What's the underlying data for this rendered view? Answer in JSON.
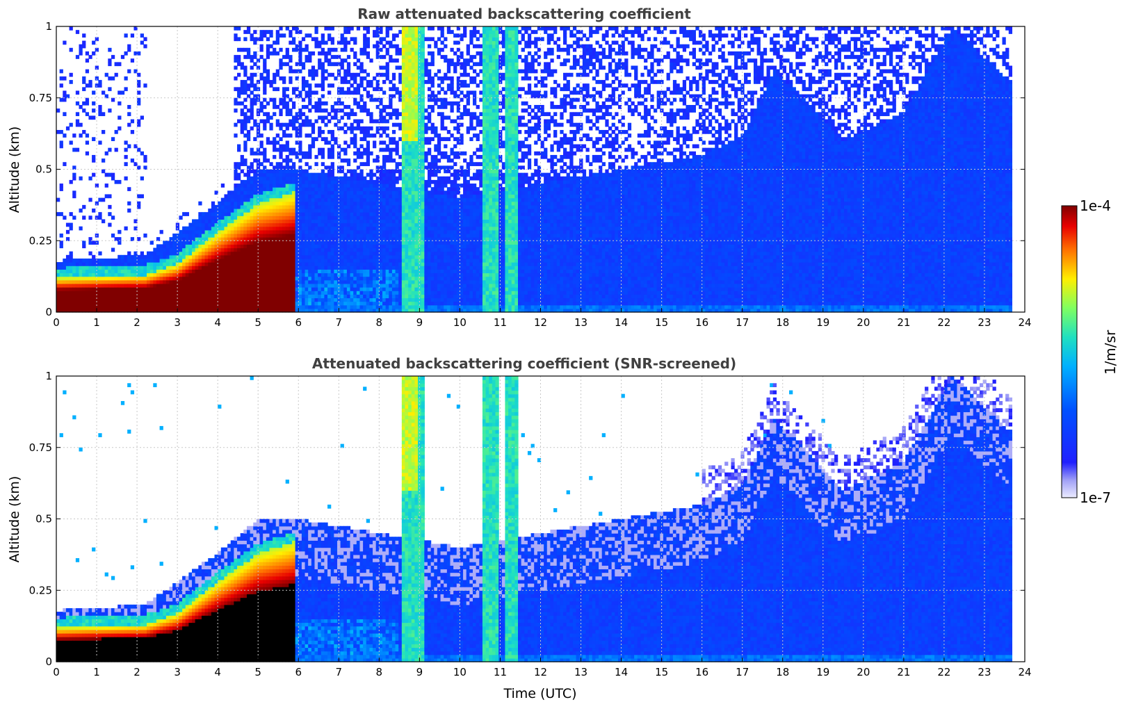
{
  "chart_data": [
    {
      "type": "heatmap",
      "title": "Raw attenuated backscattering coefficient",
      "xlabel": "",
      "ylabel": "Altitude (km)",
      "xlim": [
        0,
        24
      ],
      "ylim": [
        0,
        1
      ],
      "xticks": [
        "0",
        "1",
        "2",
        "3",
        "4",
        "5",
        "6",
        "7",
        "8",
        "9",
        "10",
        "11",
        "12",
        "13",
        "14",
        "15",
        "16",
        "17",
        "18",
        "19",
        "20",
        "21",
        "22",
        "23",
        "24"
      ],
      "yticks": [
        "0",
        "0.25",
        "0.5",
        "0.75",
        "1"
      ],
      "grid": true,
      "screened": false
    },
    {
      "type": "heatmap",
      "title": "Attenuated backscattering coefficient (SNR-screened)",
      "xlabel": "Time (UTC)",
      "ylabel": "Altitude (km)",
      "xlim": [
        0,
        24
      ],
      "ylim": [
        0,
        1
      ],
      "xticks": [
        "0",
        "1",
        "2",
        "3",
        "4",
        "5",
        "6",
        "7",
        "8",
        "9",
        "10",
        "11",
        "12",
        "13",
        "14",
        "15",
        "16",
        "17",
        "18",
        "19",
        "20",
        "21",
        "22",
        "23",
        "24"
      ],
      "yticks": [
        "0",
        "0.25",
        "0.5",
        "0.75",
        "1"
      ],
      "grid": true,
      "screened": true
    }
  ],
  "colorbar": {
    "label": "1/m/sr",
    "max_label": "1e-4",
    "min_label": "1e-7",
    "colormap": "jet",
    "scale": "log",
    "range": [
      1e-07,
      0.0001
    ]
  },
  "features": {
    "aerosol_layer_top_km": [
      [
        0,
        0.18
      ],
      [
        2.2,
        0.2
      ],
      [
        3,
        0.28
      ],
      [
        4,
        0.38
      ],
      [
        5,
        0.5
      ],
      [
        6,
        0.5
      ],
      [
        8,
        0.45
      ],
      [
        10,
        0.4
      ],
      [
        12,
        0.45
      ],
      [
        14,
        0.5
      ],
      [
        16,
        0.55
      ],
      [
        17,
        0.62
      ],
      [
        17.8,
        0.85
      ],
      [
        18.5,
        0.75
      ],
      [
        19.5,
        0.6
      ],
      [
        21,
        0.7
      ],
      [
        22.2,
        1.0
      ],
      [
        23.7,
        0.8
      ]
    ],
    "dense_layer_top_km": [
      [
        0,
        0.12
      ],
      [
        2.2,
        0.13
      ],
      [
        3,
        0.17
      ],
      [
        4,
        0.28
      ],
      [
        5,
        0.38
      ],
      [
        5.9,
        0.42
      ]
    ],
    "precip_bands_utc": [
      [
        8.6,
        9.1
      ],
      [
        10.6,
        10.95
      ],
      [
        11.1,
        11.45
      ]
    ],
    "data_end_utc": 23.7
  },
  "colors": {
    "title": "#404040",
    "grid": "#c8c8c8"
  }
}
